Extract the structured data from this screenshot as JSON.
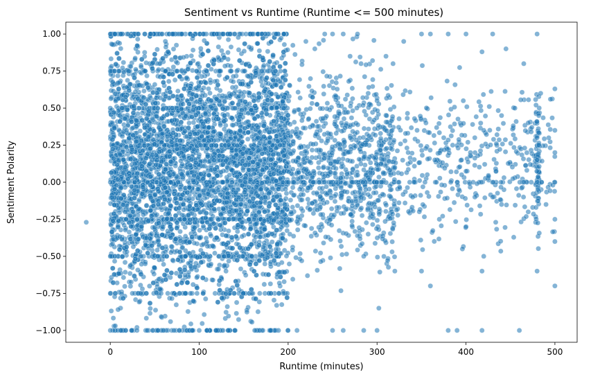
{
  "chart_data": {
    "type": "scatter",
    "title": "Sentiment vs Runtime (Runtime <= 500 minutes)",
    "xlabel": "Runtime (minutes)",
    "ylabel": "Sentiment Polarity",
    "xlim": [
      -50,
      525
    ],
    "ylim": [
      -1.08,
      1.08
    ],
    "xticks": [
      0,
      100,
      200,
      300,
      400,
      500
    ],
    "xtick_labels": [
      "0",
      "100",
      "200",
      "300",
      "400",
      "500"
    ],
    "yticks": [
      -1.0,
      -0.75,
      -0.5,
      -0.25,
      0.0,
      0.25,
      0.5,
      0.75,
      1.0
    ],
    "ytick_labels": [
      "−1.00",
      "−0.75",
      "−0.50",
      "−0.25",
      "0.00",
      "0.25",
      "0.50",
      "0.75",
      "1.00"
    ],
    "grid": false,
    "color": "#1f77b4",
    "description_points": {
      "outlier": [
        -27,
        -0.27
      ],
      "dense_region_x": [
        0,
        200
      ],
      "sparse_region_x": [
        200,
        500
      ]
    },
    "series": [
      {
        "points": [
          [
            -27,
            -0.27
          ],
          [
            0,
            1.0
          ],
          [
            0,
            -1.0
          ],
          [
            0,
            0.0
          ],
          [
            0,
            0.5
          ],
          [
            0,
            -0.5
          ],
          [
            0,
            0.75
          ],
          [
            0,
            -0.75
          ],
          [
            5,
            1.0
          ],
          [
            12,
            -1.0
          ],
          [
            20,
            1.0
          ],
          [
            30,
            -1.0
          ],
          [
            45,
            1.0
          ],
          [
            60,
            -1.0
          ],
          [
            80,
            1.0
          ],
          [
            100,
            -1.0
          ],
          [
            120,
            1.0
          ],
          [
            140,
            -1.0
          ],
          [
            160,
            1.0
          ],
          [
            180,
            -1.0
          ],
          [
            195,
            1.0
          ],
          [
            210,
            -1.0
          ],
          [
            220,
            0.95
          ],
          [
            230,
            0.9
          ],
          [
            250,
            1.0
          ],
          [
            262,
            1.0
          ],
          [
            278,
            1.0
          ],
          [
            282,
            0.8
          ],
          [
            290,
            0.6
          ],
          [
            300,
            0.55
          ],
          [
            310,
            0.85
          ],
          [
            318,
            0.8
          ],
          [
            330,
            0.95
          ],
          [
            350,
            1.0
          ],
          [
            360,
            1.0
          ],
          [
            380,
            1.0
          ],
          [
            400,
            1.0
          ],
          [
            418,
            0.88
          ],
          [
            430,
            1.0
          ],
          [
            445,
            0.9
          ],
          [
            465,
            0.8
          ],
          [
            480,
            1.0
          ],
          [
            484,
            0.6
          ],
          [
            495,
            0.56
          ],
          [
            500,
            0.63
          ],
          [
            250,
            -1.0
          ],
          [
            262,
            -1.0
          ],
          [
            285,
            -1.0
          ],
          [
            300,
            -1.0
          ],
          [
            302,
            -0.85
          ],
          [
            320,
            -0.6
          ],
          [
            350,
            -0.6
          ],
          [
            360,
            -0.7
          ],
          [
            380,
            -1.0
          ],
          [
            390,
            -1.0
          ],
          [
            418,
            -1.0
          ],
          [
            418,
            -0.6
          ],
          [
            420,
            -0.5
          ],
          [
            460,
            -1.0
          ],
          [
            480,
            -0.6
          ],
          [
            500,
            -0.7
          ],
          [
            500,
            -0.4
          ],
          [
            500,
            0.0
          ],
          [
            500,
            0.2
          ],
          [
            500,
            0.35
          ],
          [
            500,
            -0.25
          ],
          [
            490,
            -0.15
          ],
          [
            470,
            -0.2
          ],
          [
            440,
            -0.15
          ],
          [
            430,
            -0.1
          ],
          [
            410,
            -0.1
          ],
          [
            400,
            -0.3
          ],
          [
            396,
            -0.45
          ],
          [
            395,
            0.15
          ],
          [
            405,
            0.2
          ],
          [
            420,
            0.35
          ],
          [
            440,
            0.45
          ],
          [
            455,
            0.5
          ],
          [
            470,
            0.4
          ],
          [
            480,
            0.3
          ],
          [
            485,
            0.0
          ],
          [
            480,
            0.15
          ],
          [
            482,
            0.25
          ],
          [
            481,
            -0.05
          ],
          [
            260,
            0.4
          ],
          [
            270,
            0.3
          ],
          [
            285,
            -0.5
          ],
          [
            290,
            -0.35
          ],
          [
            305,
            0.25
          ],
          [
            320,
            0.1
          ],
          [
            335,
            0.2
          ],
          [
            340,
            -0.1
          ],
          [
            345,
            0.35
          ],
          [
            355,
            0.4
          ],
          [
            365,
            0.15
          ],
          [
            370,
            -0.25
          ],
          [
            375,
            0.3
          ],
          [
            385,
            0.25
          ],
          [
            392,
            -0.05
          ],
          [
            397,
            0.55
          ]
        ]
      }
    ]
  }
}
